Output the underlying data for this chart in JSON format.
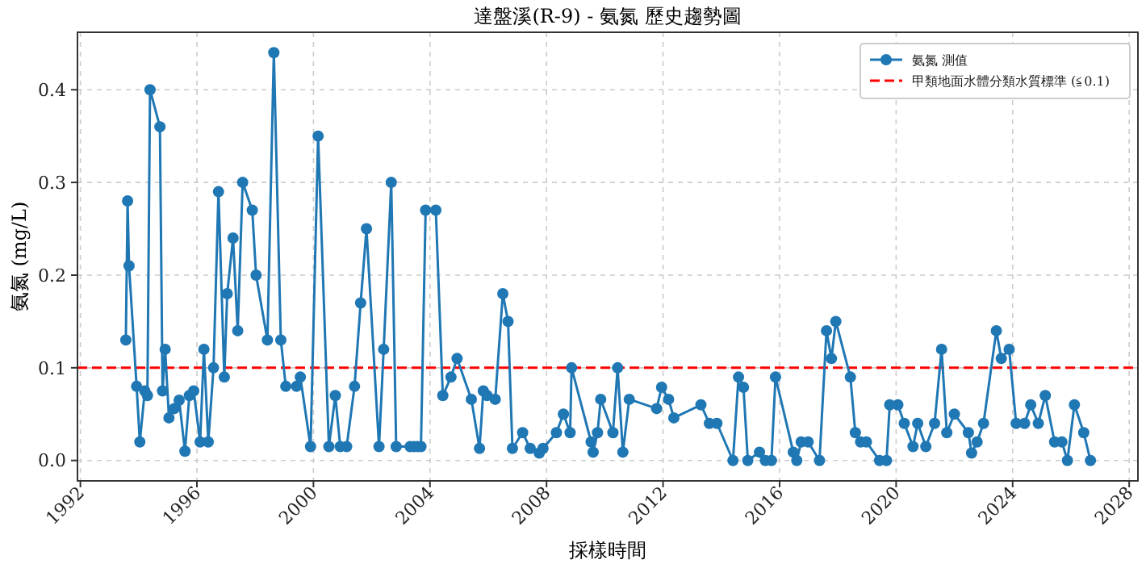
{
  "chart_data": {
    "type": "line",
    "title": "達盤溪(R-9) - 氨氮 歷史趨勢圖",
    "xlabel": "採樣時間",
    "ylabel": "氨氮 (mg/L)",
    "xlim": [
      1991.9,
      2028.3
    ],
    "xticks": [
      1992,
      1996,
      2000,
      2004,
      2008,
      2012,
      2016,
      2020,
      2024,
      2028
    ],
    "ylim": [
      -0.022,
      0.462
    ],
    "yticks": [
      {
        "value": 0,
        "label": "0.0"
      },
      {
        "value": 0.1,
        "label": "0.1"
      },
      {
        "value": 0.2,
        "label": "0.2"
      },
      {
        "value": 0.3,
        "label": "0.3"
      },
      {
        "value": 0.4,
        "label": "0.4"
      }
    ],
    "grid": true,
    "legend": "top right",
    "marker": "circle",
    "line_style": "solid",
    "series": [
      {
        "name": "氨氮 測值",
        "color": "#1f77b4",
        "x": [
          1993.56,
          1993.62,
          1993.67,
          1993.93,
          1994.04,
          1994.21,
          1994.3,
          1994.39,
          1994.73,
          1994.82,
          1994.91,
          1995.04,
          1995.22,
          1995.39,
          1995.59,
          1995.74,
          1995.89,
          1996.11,
          1996.24,
          1996.39,
          1996.57,
          1996.74,
          1996.94,
          1997.04,
          1997.24,
          1997.4,
          1997.57,
          1997.9,
          1998.03,
          1998.42,
          1998.64,
          1998.88,
          1999.05,
          1999.42,
          1999.55,
          1999.9,
          2000.16,
          2000.53,
          2000.75,
          2000.92,
          2001.14,
          2001.41,
          2001.62,
          2001.82,
          2002.25,
          2002.41,
          2002.67,
          2002.84,
          2003.32,
          2003.45,
          2003.57,
          2003.69,
          2003.85,
          2004.2,
          2004.44,
          2004.72,
          2004.93,
          2005.42,
          2005.7,
          2005.83,
          2005.96,
          2006.24,
          2006.5,
          2006.68,
          2006.83,
          2007.18,
          2007.44,
          2007.75,
          2007.88,
          2008.34,
          2008.58,
          2008.81,
          2008.86,
          2009.53,
          2009.6,
          2009.75,
          2009.86,
          2010.28,
          2010.44,
          2010.62,
          2010.84,
          2011.78,
          2011.95,
          2012.19,
          2012.37,
          2013.3,
          2013.59,
          2013.85,
          2014.4,
          2014.59,
          2014.76,
          2014.91,
          2015.31,
          2015.51,
          2015.72,
          2015.86,
          2016.47,
          2016.59,
          2016.74,
          2016.98,
          2017.37,
          2017.61,
          2017.78,
          2017.93,
          2018.43,
          2018.6,
          2018.78,
          2018.98,
          2019.43,
          2019.67,
          2019.78,
          2020.06,
          2020.28,
          2020.58,
          2020.74,
          2021.02,
          2021.32,
          2021.56,
          2021.74,
          2022.0,
          2022.48,
          2022.59,
          2022.78,
          2023.0,
          2023.44,
          2023.61,
          2023.88,
          2024.12,
          2024.41,
          2024.62,
          2024.88,
          2025.12,
          2025.44,
          2025.69,
          2025.88,
          2026.12,
          2026.44,
          2026.67
        ],
        "values": [
          0.13,
          0.28,
          0.21,
          0.08,
          0.02,
          0.075,
          0.07,
          0.4,
          0.36,
          0.075,
          0.12,
          0.046,
          0.056,
          0.065,
          0.01,
          0.07,
          0.075,
          0.02,
          0.12,
          0.02,
          0.1,
          0.29,
          0.09,
          0.18,
          0.24,
          0.14,
          0.3,
          0.27,
          0.2,
          0.13,
          0.44,
          0.13,
          0.08,
          0.08,
          0.09,
          0.015,
          0.35,
          0.015,
          0.07,
          0.015,
          0.015,
          0.08,
          0.17,
          0.25,
          0.015,
          0.12,
          0.3,
          0.015,
          0.015,
          0.015,
          0.015,
          0.015,
          0.27,
          0.27,
          0.07,
          0.09,
          0.11,
          0.066,
          0.013,
          0.075,
          0.07,
          0.066,
          0.18,
          0.15,
          0.013,
          0.03,
          0.013,
          0.008,
          0.013,
          0.03,
          0.05,
          0.03,
          0.1,
          0.02,
          0.009,
          0.03,
          0.066,
          0.03,
          0.1,
          0.009,
          0.066,
          0.056,
          0.079,
          0.066,
          0.046,
          0.06,
          0.04,
          0.04,
          0,
          0.09,
          0.079,
          0,
          0.009,
          0,
          0,
          0.09,
          0.009,
          0,
          0.02,
          0.02,
          0,
          0.14,
          0.11,
          0.15,
          0.09,
          0.03,
          0.02,
          0.02,
          0,
          0,
          0.06,
          0.06,
          0.04,
          0.015,
          0.04,
          0.015,
          0.04,
          0.12,
          0.03,
          0.05,
          0.03,
          0.008,
          0.02,
          0.04,
          0.14,
          0.11,
          0.12,
          0.04,
          0.04,
          0.06,
          0.04,
          0.07,
          0.02,
          0.02,
          0,
          0.06,
          0.03,
          0
        ]
      }
    ],
    "ref_lines": [
      {
        "axis": "y",
        "value": 0.1,
        "label": "甲類地面水體分類水質標準 (≦0.1)",
        "color": "#ff0000",
        "line_style": "dashed"
      }
    ]
  }
}
